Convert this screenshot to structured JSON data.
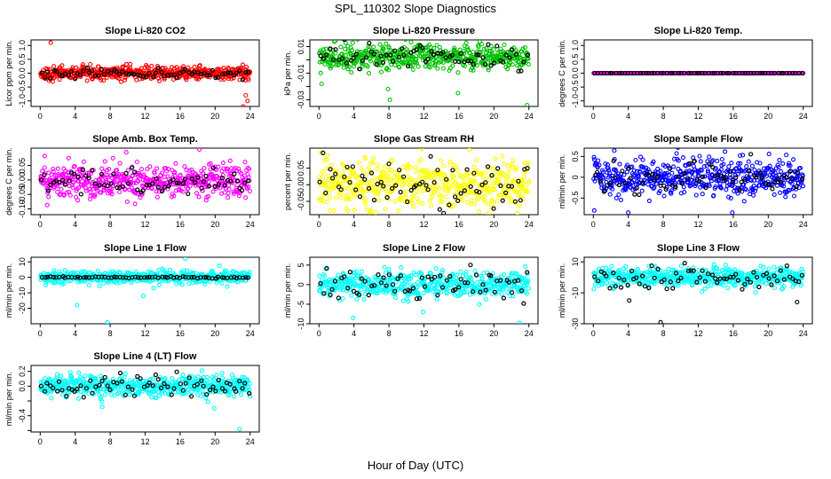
{
  "figure": {
    "title": "SPL_110302  Slope Diagnostics",
    "xlabel": "Hour of Day (UTC)",
    "highlight_color": "#000000"
  },
  "chart_data": [
    {
      "type": "scatter",
      "title": "Slope Li-820 CO2",
      "ylabel": "Licor ppm per min.",
      "color": "#ff0000",
      "xlim": [
        0,
        24
      ],
      "ylim": [
        -1.2,
        1.2
      ],
      "yticks": [
        -1.0,
        -0.5,
        0.0,
        0.5,
        1.0
      ],
      "ytick_labels": [
        "-1.0",
        "-0.5",
        "0.0",
        "0.5",
        "1.0"
      ],
      "xticks": [
        0,
        4,
        8,
        12,
        16,
        20,
        24
      ],
      "center": 0.0,
      "spread": 0.12,
      "outliers": [
        [
          1.2,
          1.1
        ],
        [
          23.5,
          -0.8
        ],
        [
          23.7,
          -1.0
        ],
        [
          23.2,
          -1.2
        ]
      ],
      "highlight_spread": 0.09
    },
    {
      "type": "scatter",
      "title": "Slope Li-820 Pressure",
      "ylabel": "kPa per min.",
      "color": "#00c000",
      "xlim": [
        0,
        24
      ],
      "ylim": [
        -0.035,
        0.015
      ],
      "yticks": [
        -0.03,
        -0.02,
        -0.01,
        0.0,
        0.01
      ],
      "ytick_labels": [
        "-0.03",
        "",
        "-0.01",
        "",
        "0.01"
      ],
      "xticks": [
        0,
        4,
        8,
        12,
        16,
        20,
        24
      ],
      "center": 0.002,
      "spread": 0.0045,
      "outliers": [
        [
          7.9,
          -0.022
        ],
        [
          15.9,
          -0.025
        ],
        [
          0.3,
          -0.018
        ],
        [
          23.8,
          -0.034
        ],
        [
          8.1,
          -0.03
        ]
      ],
      "highlight_spread": 0.005
    },
    {
      "type": "scatter",
      "title": "Slope Li-820 Temp.",
      "ylabel": "degrees C per min.",
      "color": "#ff00ff",
      "xlim": [
        0,
        24
      ],
      "ylim": [
        -1.2,
        1.2
      ],
      "yticks": [
        -1.0,
        -0.5,
        0.0,
        0.5,
        1.0
      ],
      "ytick_labels": [
        "-1.0",
        "-0.5",
        "0.0",
        "0.5",
        "1.0"
      ],
      "xticks": [
        0,
        4,
        8,
        12,
        16,
        20,
        24
      ],
      "center": 0.0,
      "spread": 0.0,
      "outliers": [],
      "highlight_spread": 0.0
    },
    {
      "type": "scatter",
      "title": "Slope Amb. Box Temp.",
      "ylabel": "degrees C per min.",
      "color": "#ff00ff",
      "xlim": [
        0,
        24
      ],
      "ylim": [
        -0.12,
        0.11
      ],
      "yticks": [
        -0.1,
        -0.05,
        0.0,
        0.05
      ],
      "ytick_labels": [
        "-0.10",
        "-0.05",
        "0.00",
        "0.05"
      ],
      "xticks": [
        0,
        4,
        8,
        12,
        16,
        20,
        24
      ],
      "center": -0.005,
      "spread": 0.03,
      "outliers": [
        [
          18.2,
          0.105
        ]
      ],
      "highlight_spread": 0.02
    },
    {
      "type": "scatter",
      "title": "Slope Gas Stream RH",
      "ylabel": "percent per min.",
      "color": "#ffff00",
      "xlim": [
        0,
        24
      ],
      "ylim": [
        -0.09,
        0.11
      ],
      "yticks": [
        -0.05,
        0.0,
        0.05
      ],
      "ytick_labels": [
        "-0.05",
        "0.00",
        "0.05"
      ],
      "xticks": [
        0,
        4,
        8,
        12,
        16,
        20,
        24
      ],
      "center": 0.0,
      "spread": 0.035,
      "outliers": [
        [
          17.2,
          0.105
        ]
      ],
      "highlight_spread": 0.035
    },
    {
      "type": "scatter",
      "title": "Slope Sample Flow",
      "ylabel": "ml/min per min.",
      "color": "#0000ff",
      "xlim": [
        0,
        24
      ],
      "ylim": [
        -0.9,
        0.7
      ],
      "yticks": [
        -0.5,
        0.0,
        0.5
      ],
      "ytick_labels": [
        "-0.5",
        "0",
        "0.5"
      ],
      "xticks": [
        0,
        4,
        8,
        12,
        16,
        20,
        24
      ],
      "center": 0.0,
      "spread": 0.22,
      "outliers": [
        [
          0.1,
          -0.8
        ],
        [
          4.0,
          -0.85
        ],
        [
          15.9,
          -0.85
        ]
      ],
      "highlight_spread": 0.2
    },
    {
      "type": "scatter",
      "title": "Slope Line 1 Flow",
      "ylabel": "ml/min per min.",
      "color": "#00ffff",
      "xlim": [
        0,
        24
      ],
      "ylim": [
        -30,
        13
      ],
      "yticks": [
        -20,
        -10,
        0,
        10
      ],
      "ytick_labels": [
        "-20",
        "-10",
        "0",
        "10"
      ],
      "xticks": [
        0,
        4,
        8,
        12,
        16,
        20,
        24
      ],
      "center": 0.0,
      "spread": 2.0,
      "outliers": [
        [
          7.7,
          -29
        ],
        [
          4.2,
          -18
        ],
        [
          11.8,
          -12
        ],
        [
          16.6,
          12
        ]
      ],
      "highlight_spread": 0.3
    },
    {
      "type": "scatter",
      "title": "Slope Line 2 Flow",
      "ylabel": "ml/min per min.",
      "color": "#00ffff",
      "xlim": [
        0,
        24
      ],
      "ylim": [
        -10,
        7
      ],
      "yticks": [
        -10,
        -5,
        0,
        5
      ],
      "ytick_labels": [
        "-10",
        "-5",
        "0",
        "5"
      ],
      "xticks": [
        0,
        4,
        8,
        12,
        16,
        20,
        24
      ],
      "center": 0.0,
      "spread": 1.6,
      "outliers": [
        [
          3.9,
          -8.5
        ],
        [
          22.9,
          -9.8
        ],
        [
          11.9,
          -7.0
        ]
      ],
      "highlight_spread": 2.0
    },
    {
      "type": "scatter",
      "title": "Slope Line 3 Flow",
      "ylabel": "ml/min per min.",
      "color": "#00ffff",
      "xlim": [
        0,
        24
      ],
      "ylim": [
        -30,
        13
      ],
      "yticks": [
        -30,
        -10,
        10
      ],
      "ytick_labels": [
        "-30",
        "-10",
        "10"
      ],
      "xticks": [
        0,
        4,
        8,
        12,
        16,
        20,
        24
      ],
      "center": 0.0,
      "spread": 3.0,
      "outliers": [
        [
          7.7,
          -29
        ],
        [
          4.1,
          -15
        ],
        [
          23.3,
          -16
        ]
      ],
      "highlight_spread": 4.0
    },
    {
      "type": "scatter",
      "title": "Slope Line 4 (LT) Flow",
      "ylabel": "ml/min per min.",
      "color": "#00ffff",
      "xlim": [
        0,
        24
      ],
      "ylim": [
        -0.62,
        0.28
      ],
      "yticks": [
        -0.6,
        -0.4,
        -0.2,
        0.0,
        0.2
      ],
      "ytick_labels": [
        "",
        "-0.4",
        "",
        "0.0",
        "0.2"
      ],
      "xticks": [
        0,
        4,
        8,
        12,
        16,
        20,
        24
      ],
      "center": 0.0,
      "spread": 0.07,
      "outliers": [
        [
          22.8,
          -0.58
        ],
        [
          7.1,
          -0.28
        ],
        [
          19.9,
          -0.3
        ]
      ],
      "highlight_spread": 0.07
    }
  ]
}
